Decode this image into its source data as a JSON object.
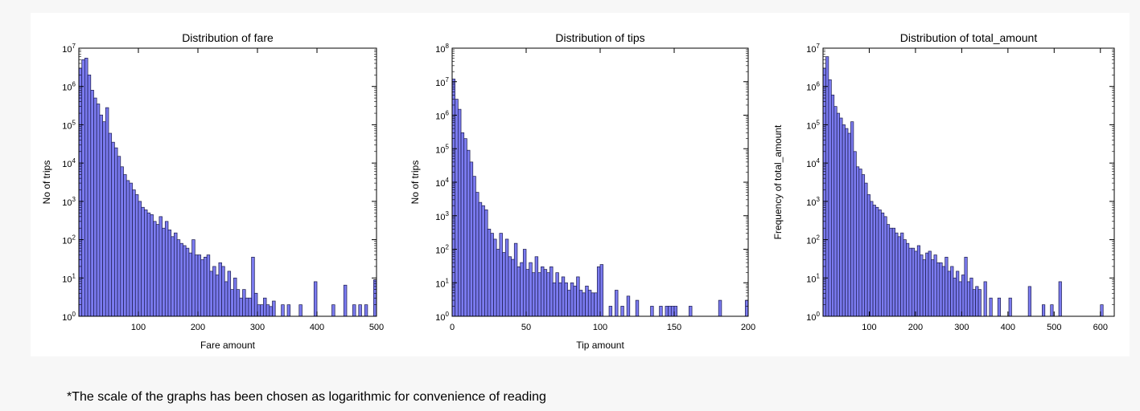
{
  "footnote": "*The scale of the graphs has been chosen as logarithmic for convenience of reading",
  "colors": {
    "bar_fill": "#7b7bf0",
    "bar_edge": "#1a1a4a",
    "axis": "#000000"
  },
  "chart_data": [
    {
      "type": "bar",
      "title": "Distribution of fare",
      "xlabel": "Fare amount",
      "ylabel": "No of trips",
      "yscale": "log",
      "xlim": [
        0,
        500
      ],
      "ylim_exp": [
        0,
        7
      ],
      "xticks": [
        "100",
        "200",
        "300",
        "400",
        "500"
      ],
      "yticks": [
        "10^0",
        "10^1",
        "10^2",
        "10^3",
        "10^4",
        "10^5",
        "10^6",
        "10^7"
      ],
      "bin_width": 5,
      "x": [
        2.5,
        7.5,
        12.5,
        17.5,
        22.5,
        27.5,
        32.5,
        37.5,
        42.5,
        47.5,
        52.5,
        57.5,
        62.5,
        67.5,
        72.5,
        77.5,
        82.5,
        87.5,
        92.5,
        97.5,
        102.5,
        107.5,
        112.5,
        117.5,
        122.5,
        127.5,
        132.5,
        137.5,
        142.5,
        147.5,
        152.5,
        157.5,
        162.5,
        167.5,
        172.5,
        177.5,
        182.5,
        187.5,
        192.5,
        197.5,
        202.5,
        207.5,
        212.5,
        217.5,
        222.5,
        227.5,
        232.5,
        237.5,
        242.5,
        247.5,
        252.5,
        257.5,
        262.5,
        267.5,
        272.5,
        277.5,
        282.5,
        287.5,
        292.5,
        297.5,
        302.5,
        307.5,
        312.5,
        317.5,
        322.5,
        327.5,
        342.5,
        352.5,
        372.5,
        397.5,
        427.5,
        447.5,
        462.5,
        472.5,
        482.5,
        497.5
      ],
      "values": [
        3000000,
        5000000,
        5500000,
        2000000,
        800000,
        500000,
        350000,
        180000,
        120000,
        280000,
        60000,
        35000,
        25000,
        15000,
        8000,
        5000,
        3500,
        3000,
        2000,
        1500,
        1000,
        700,
        600,
        500,
        450,
        300,
        250,
        400,
        200,
        300,
        180,
        120,
        150,
        100,
        80,
        70,
        60,
        45,
        100,
        40,
        40,
        30,
        35,
        40,
        15,
        20,
        12,
        25,
        20,
        8,
        15,
        5,
        10,
        5,
        3,
        5,
        3,
        3,
        35,
        4,
        2,
        2,
        3,
        2,
        1.8,
        2.5,
        2,
        2,
        2,
        8,
        2,
        6.5,
        2,
        2,
        2,
        9
      ]
    },
    {
      "type": "bar",
      "title": "Distribution of tips",
      "xlabel": "Tip amount",
      "ylabel": "No of trips",
      "yscale": "log",
      "xlim": [
        0,
        200
      ],
      "ylim_exp": [
        0,
        8
      ],
      "xticks": [
        "0",
        "50",
        "100",
        "150",
        "200"
      ],
      "yticks": [
        "10^0",
        "10^1",
        "10^2",
        "10^3",
        "10^4",
        "10^5",
        "10^6",
        "10^7",
        "10^8"
      ],
      "bin_width": 2,
      "x": [
        1,
        3,
        5,
        7,
        9,
        11,
        13,
        15,
        17,
        19,
        21,
        23,
        25,
        27,
        29,
        31,
        33,
        35,
        37,
        39,
        41,
        43,
        45,
        47,
        49,
        51,
        53,
        55,
        57,
        59,
        61,
        63,
        65,
        67,
        69,
        71,
        73,
        75,
        77,
        79,
        81,
        83,
        85,
        87,
        89,
        91,
        93,
        95,
        97,
        99,
        101,
        107,
        111,
        115,
        119,
        125,
        135,
        141,
        145,
        147,
        149,
        151,
        161,
        181,
        199
      ],
      "values": [
        12000000,
        3000000,
        1500000,
        300000,
        200000,
        90000,
        40000,
        15000,
        5000,
        2500,
        2000,
        1500,
        400,
        300,
        200,
        100,
        300,
        80,
        200,
        60,
        50,
        150,
        30,
        40,
        100,
        25,
        40,
        20,
        60,
        20,
        30,
        25,
        20,
        30,
        10,
        20,
        10,
        15,
        10,
        6,
        10,
        8,
        15,
        6,
        5,
        8,
        6,
        5,
        5,
        30,
        35,
        2,
        6,
        2,
        4,
        3,
        2,
        2,
        2,
        2,
        2,
        2,
        2,
        3,
        3
      ]
    },
    {
      "type": "bar",
      "title": "Distribution of total_amount",
      "xlabel": "",
      "ylabel": "Frequency of total_amount",
      "yscale": "log",
      "xlim": [
        0,
        630
      ],
      "ylim_exp": [
        0,
        7
      ],
      "xticks": [
        "100",
        "200",
        "300",
        "400",
        "500",
        "600"
      ],
      "yticks": [
        "10^0",
        "10^1",
        "10^2",
        "10^3",
        "10^4",
        "10^5",
        "10^6",
        "10^7"
      ],
      "bin_width": 6,
      "x": [
        3,
        9,
        15,
        21,
        27,
        33,
        39,
        45,
        51,
        57,
        63,
        69,
        75,
        81,
        87,
        93,
        99,
        105,
        111,
        117,
        123,
        129,
        135,
        141,
        147,
        153,
        159,
        165,
        171,
        177,
        183,
        189,
        195,
        201,
        207,
        213,
        219,
        225,
        231,
        237,
        243,
        249,
        255,
        261,
        267,
        273,
        279,
        285,
        291,
        297,
        303,
        309,
        315,
        321,
        327,
        333,
        339,
        351,
        363,
        381,
        405,
        447,
        477,
        495,
        513,
        603
      ],
      "values": [
        3000000,
        6000000,
        1500000,
        600000,
        300000,
        200000,
        150000,
        100000,
        80000,
        60000,
        120000,
        20000,
        8000,
        7000,
        5000,
        3000,
        1500,
        1000,
        800,
        700,
        600,
        500,
        400,
        250,
        200,
        200,
        150,
        120,
        150,
        100,
        80,
        60,
        60,
        50,
        70,
        40,
        30,
        45,
        50,
        30,
        40,
        25,
        25,
        20,
        35,
        15,
        20,
        10,
        15,
        8,
        12,
        35,
        8,
        10,
        5,
        6,
        5,
        8,
        3,
        3,
        3,
        6,
        2,
        2,
        8,
        2
      ]
    }
  ]
}
